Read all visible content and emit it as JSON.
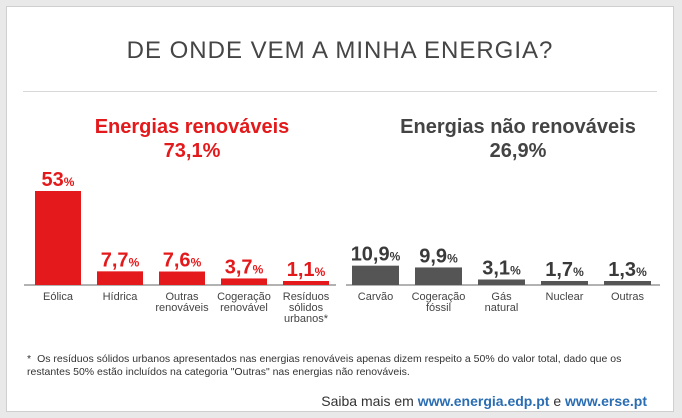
{
  "colors": {
    "renewable": "#e4191b",
    "non_renewable": "#555555",
    "baseline": "#999999",
    "link": "#2a6db3"
  },
  "chart_data": {
    "type": "bar",
    "title": "DE ONDE VEM A MINHA ENERGIA?",
    "groups": [
      {
        "name": "Energias renováveis",
        "total": "73,1%",
        "categories": [
          "Eólica",
          "Hídrica",
          "Outras renováveis",
          "Cogeração renovável",
          "Resíduos sólidos urbanos*"
        ],
        "values": [
          53,
          7.7,
          7.6,
          3.7,
          1.1
        ],
        "value_labels": [
          {
            "num": "53",
            "unit": "%"
          },
          {
            "num": "7,7",
            "unit": "%"
          },
          {
            "num": "7,6",
            "unit": "%"
          },
          {
            "num": "3,7",
            "unit": "%"
          },
          {
            "num": "1,1",
            "unit": "%"
          }
        ]
      },
      {
        "name": "Energias não renováveis",
        "total": "26,9%",
        "categories": [
          "Carvão",
          "Cogeração fóssil",
          "Gás natural",
          "Nuclear",
          "Outras"
        ],
        "values": [
          10.9,
          9.9,
          3.1,
          1.7,
          1.3
        ],
        "value_labels": [
          {
            "num": "10,9",
            "unit": "%"
          },
          {
            "num": "9,9",
            "unit": "%"
          },
          {
            "num": "3,1",
            "unit": "%"
          },
          {
            "num": "1,7",
            "unit": "%"
          },
          {
            "num": "1,3",
            "unit": "%"
          }
        ]
      }
    ]
  },
  "footnote": {
    "star": "*",
    "text": "Os resíduos sólidos urbanos apresentados nas energias renováveis apenas dizem respeito a 50% do valor total, dado que os restantes 50% estão incluídos na categoria \"Outras\" nas energias não renováveis."
  },
  "more_info": {
    "prefix": "Saiba mais em",
    "link1": "www.energia.edp.pt",
    "connector": "e",
    "link2": "www.erse.pt"
  }
}
